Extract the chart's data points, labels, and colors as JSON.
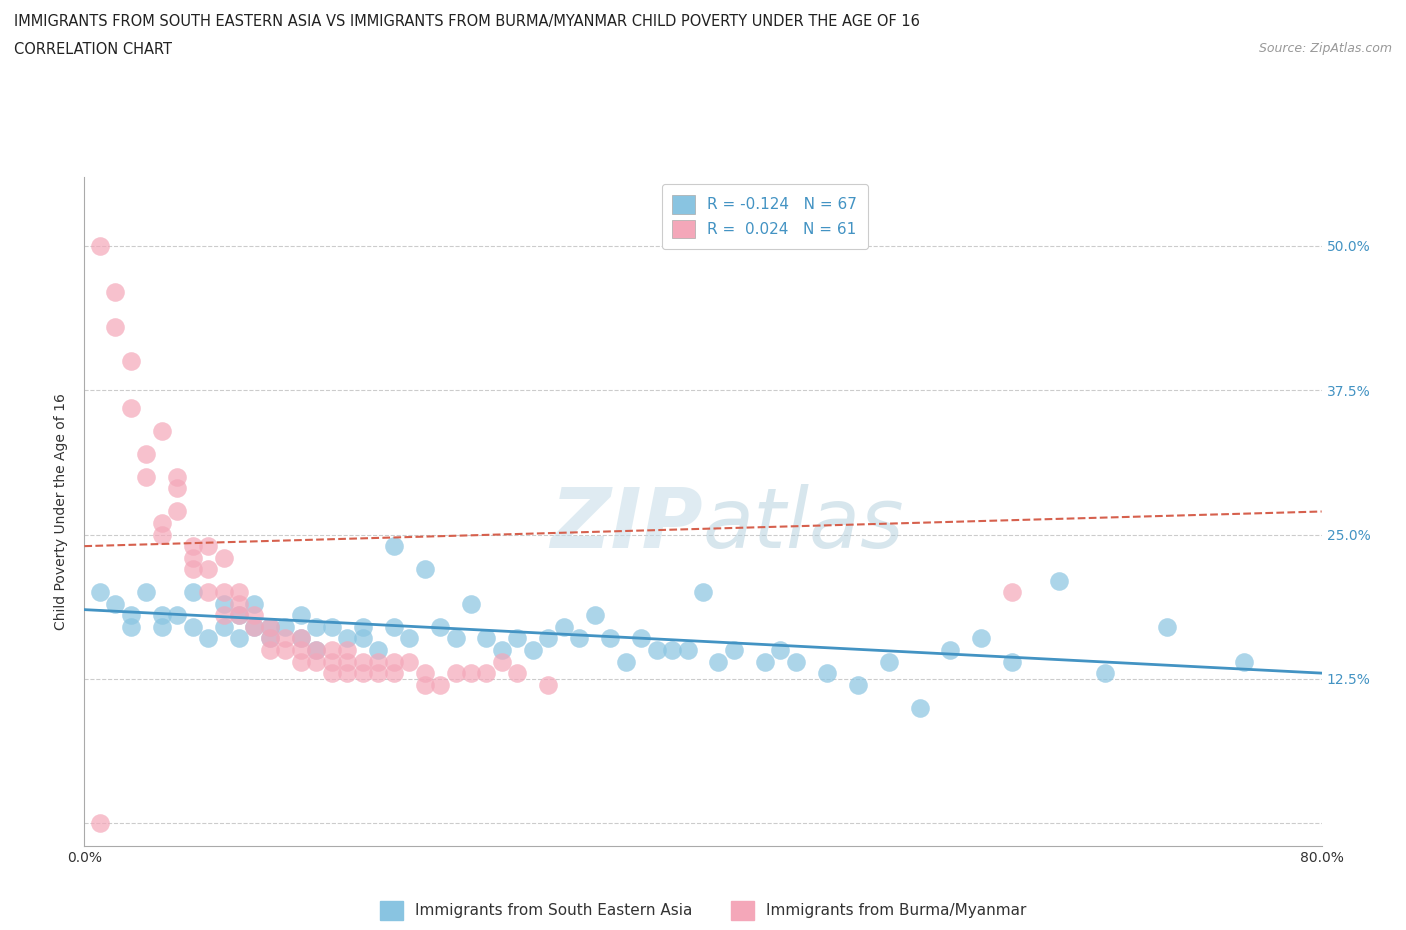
{
  "title_line1": "IMMIGRANTS FROM SOUTH EASTERN ASIA VS IMMIGRANTS FROM BURMA/MYANMAR CHILD POVERTY UNDER THE AGE OF 16",
  "title_line2": "CORRELATION CHART",
  "source": "Source: ZipAtlas.com",
  "ylabel": "Child Poverty Under the Age of 16",
  "xlim": [
    0.0,
    0.8
  ],
  "ylim": [
    -0.02,
    0.56
  ],
  "xtick_pos": [
    0.0,
    0.2,
    0.4,
    0.6,
    0.8
  ],
  "xtick_labels": [
    "0.0%",
    "",
    "",
    "",
    "80.0%"
  ],
  "ytick_positions": [
    0.0,
    0.125,
    0.25,
    0.375,
    0.5
  ],
  "ytick_labels": [
    "",
    "12.5%",
    "25.0%",
    "37.5%",
    "50.0%"
  ],
  "color_blue": "#89c4e1",
  "color_pink": "#f4a7b9",
  "line_color_blue": "#4393c3",
  "line_color_pink": "#d6604d",
  "blue_scatter_x": [
    0.01,
    0.02,
    0.03,
    0.03,
    0.04,
    0.05,
    0.05,
    0.06,
    0.07,
    0.07,
    0.08,
    0.09,
    0.09,
    0.1,
    0.1,
    0.11,
    0.11,
    0.12,
    0.12,
    0.13,
    0.14,
    0.14,
    0.15,
    0.15,
    0.16,
    0.17,
    0.18,
    0.18,
    0.19,
    0.2,
    0.2,
    0.21,
    0.22,
    0.23,
    0.24,
    0.25,
    0.26,
    0.27,
    0.28,
    0.29,
    0.3,
    0.31,
    0.32,
    0.33,
    0.34,
    0.35,
    0.36,
    0.37,
    0.38,
    0.39,
    0.4,
    0.41,
    0.42,
    0.44,
    0.45,
    0.46,
    0.48,
    0.5,
    0.52,
    0.54,
    0.56,
    0.58,
    0.6,
    0.63,
    0.66,
    0.7,
    0.75
  ],
  "blue_scatter_y": [
    0.2,
    0.19,
    0.18,
    0.17,
    0.2,
    0.17,
    0.18,
    0.18,
    0.17,
    0.2,
    0.16,
    0.19,
    0.17,
    0.18,
    0.16,
    0.17,
    0.19,
    0.16,
    0.17,
    0.17,
    0.16,
    0.18,
    0.17,
    0.15,
    0.17,
    0.16,
    0.16,
    0.17,
    0.15,
    0.24,
    0.17,
    0.16,
    0.22,
    0.17,
    0.16,
    0.19,
    0.16,
    0.15,
    0.16,
    0.15,
    0.16,
    0.17,
    0.16,
    0.18,
    0.16,
    0.14,
    0.16,
    0.15,
    0.15,
    0.15,
    0.2,
    0.14,
    0.15,
    0.14,
    0.15,
    0.14,
    0.13,
    0.12,
    0.14,
    0.1,
    0.15,
    0.16,
    0.14,
    0.21,
    0.13,
    0.17,
    0.14
  ],
  "pink_scatter_x": [
    0.01,
    0.01,
    0.02,
    0.02,
    0.03,
    0.03,
    0.04,
    0.04,
    0.05,
    0.05,
    0.05,
    0.06,
    0.06,
    0.06,
    0.07,
    0.07,
    0.07,
    0.08,
    0.08,
    0.08,
    0.09,
    0.09,
    0.09,
    0.1,
    0.1,
    0.1,
    0.11,
    0.11,
    0.12,
    0.12,
    0.12,
    0.13,
    0.13,
    0.14,
    0.14,
    0.14,
    0.15,
    0.15,
    0.16,
    0.16,
    0.16,
    0.17,
    0.17,
    0.17,
    0.18,
    0.18,
    0.19,
    0.19,
    0.2,
    0.2,
    0.21,
    0.22,
    0.22,
    0.23,
    0.24,
    0.25,
    0.26,
    0.27,
    0.28,
    0.3,
    0.6
  ],
  "pink_scatter_y": [
    0.5,
    0.0,
    0.43,
    0.46,
    0.36,
    0.4,
    0.3,
    0.32,
    0.34,
    0.26,
    0.25,
    0.29,
    0.3,
    0.27,
    0.22,
    0.24,
    0.23,
    0.22,
    0.24,
    0.2,
    0.23,
    0.2,
    0.18,
    0.19,
    0.2,
    0.18,
    0.18,
    0.17,
    0.16,
    0.17,
    0.15,
    0.16,
    0.15,
    0.16,
    0.14,
    0.15,
    0.15,
    0.14,
    0.15,
    0.13,
    0.14,
    0.14,
    0.13,
    0.15,
    0.13,
    0.14,
    0.13,
    0.14,
    0.14,
    0.13,
    0.14,
    0.13,
    0.12,
    0.12,
    0.13,
    0.13,
    0.13,
    0.14,
    0.13,
    0.12,
    0.2
  ],
  "blue_trend_y_start": 0.185,
  "blue_trend_y_end": 0.13,
  "pink_trend_y_start": 0.24,
  "pink_trend_y_end": 0.27,
  "grid_color": "#cccccc",
  "bg_color": "#ffffff",
  "watermark_color": "#d8e8f0",
  "legend_entries": [
    "Immigrants from South Eastern Asia",
    "Immigrants from Burma/Myanmar"
  ],
  "title_fontsize": 10.5,
  "axis_label_fontsize": 10,
  "tick_fontsize": 10
}
